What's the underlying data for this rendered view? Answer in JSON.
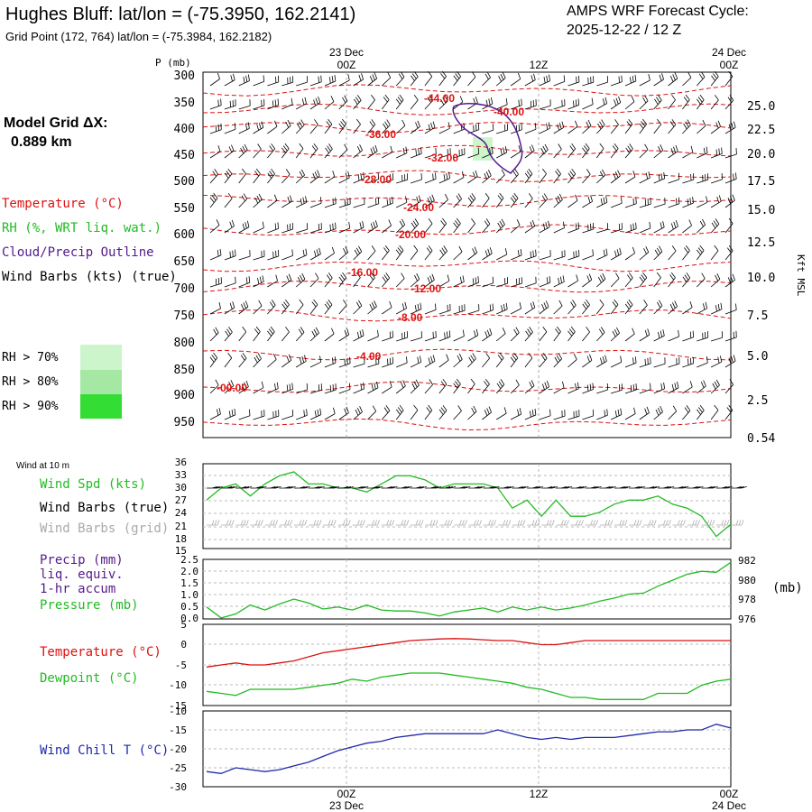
{
  "header": {
    "title": "Hughes Bluff:  lat/lon = (-75.3950, 162.2141)",
    "subtitle": "Grid Point (172, 764) lat/lon = (-75.3984, 162.2182)",
    "forecast_label": "AMPS WRF Forecast Cycle:",
    "forecast_cycle": "2025-12-22 / 12  Z"
  },
  "model": {
    "label": "Model Grid ΔX:",
    "value": "0.889 km"
  },
  "time_axis": {
    "ticks": [
      {
        "label": "00Z",
        "date": "23 Dec"
      },
      {
        "label": "12Z",
        "date": ""
      },
      {
        "label": "00Z",
        "date": "24 Dec"
      }
    ],
    "range_hours": [
      0,
      36
    ]
  },
  "colors": {
    "temperature": "#dd1111",
    "rh": "#22bb22",
    "cloud": "#551a8b",
    "wind": "#000000",
    "grid_barbs": "#aaaaaa",
    "windchill": "#1f2aa8",
    "rh70": "#ccf5cc",
    "rh80": "#a4e8a4",
    "rh90": "#33dd33"
  },
  "legend": {
    "temperature": "Temperature (°C)",
    "rh": "RH (%, WRT liq. wat.)",
    "cloud": "Cloud/Precip Outline",
    "wind": "Wind Barbs (kts) (true)",
    "rh_levels": [
      "RH > 70%",
      "RH > 80%",
      "RH > 90%"
    ]
  },
  "upper_panel": {
    "p_label": "P (mb)",
    "height_label": "Kft MSL",
    "pressure_ticks": [
      "300",
      "350",
      "400",
      "450",
      "500",
      "550",
      "600",
      "650",
      "700",
      "750",
      "800",
      "850",
      "900",
      "950"
    ],
    "height_ticks": [
      "25.0",
      "22.5",
      "20.0",
      "17.5",
      "15.0",
      "12.5",
      "10.0",
      "7.5",
      "5.0",
      "2.5",
      "0.54"
    ],
    "isotherm_labels": [
      "-44.00",
      "-40.00",
      "-36.00",
      "-32.00",
      "-28.00",
      "-24.00",
      "-20.00",
      "-16.00",
      "-12.00",
      "-8.00",
      "-4.00",
      "-00.00"
    ]
  },
  "wind_panel": {
    "title": "Wind at 10 m",
    "labels": [
      "Wind Spd (kts)",
      "Wind Barbs (true)",
      "Wind Barbs (grid)"
    ],
    "y_ticks": [
      "36",
      "33",
      "30",
      "27",
      "24",
      "21",
      "18",
      "15"
    ]
  },
  "precip_panel": {
    "labels": [
      "Precip (mm)",
      "liq. equiv.",
      "1-hr accum",
      "Pressure (mb)"
    ],
    "unit": "(mb)",
    "left_ticks": [
      "2.5",
      "2.0",
      "1.5",
      "1.0",
      "0.5",
      "0.0"
    ],
    "right_ticks": [
      "982",
      "980",
      "978",
      "976"
    ]
  },
  "temp_panel": {
    "labels": [
      "Temperature (°C)",
      "Dewpoint (°C)"
    ],
    "y_ticks": [
      "5",
      "0",
      "-5",
      "-10",
      "-15"
    ]
  },
  "chill_panel": {
    "label": "Wind Chill T (°C)",
    "y_ticks": [
      "-10",
      "-15",
      "-20",
      "-25",
      "-30"
    ]
  },
  "chart_data": [
    {
      "type": "line",
      "x": [
        0,
        1,
        2,
        3,
        4,
        5,
        6,
        7,
        8,
        9,
        10,
        11,
        12,
        13,
        14,
        15,
        16,
        17,
        18,
        19,
        20,
        21,
        22,
        23,
        24,
        25,
        26,
        27,
        28,
        29,
        30,
        31,
        32,
        33,
        34,
        35,
        36
      ],
      "series": [
        {
          "name": "Wind Spd (kts)",
          "values": [
            27,
            30,
            31,
            28,
            31,
            33,
            34,
            31,
            31,
            30,
            30,
            29,
            31,
            33,
            33,
            32,
            30,
            31,
            31,
            31,
            30,
            25,
            27,
            23,
            27,
            23,
            23,
            24,
            26,
            27,
            27,
            28,
            26,
            25,
            23,
            18,
            21
          ]
        }
      ],
      "ylim": [
        15,
        36
      ]
    },
    {
      "type": "line",
      "x": [
        0,
        1,
        2,
        3,
        4,
        5,
        6,
        7,
        8,
        9,
        10,
        11,
        12,
        13,
        14,
        15,
        16,
        17,
        18,
        19,
        20,
        21,
        22,
        23,
        24,
        25,
        26,
        27,
        28,
        29,
        30,
        31,
        32,
        33,
        34,
        35,
        36
      ],
      "series": [
        {
          "name": "Pressure (mb)",
          "values": [
            977.2,
            976.1,
            976.5,
            977.4,
            976.9,
            977.5,
            978.0,
            977.6,
            977.0,
            977.2,
            976.9,
            977.4,
            976.9,
            976.8,
            976.8,
            976.6,
            976.3,
            976.7,
            976.9,
            977.1,
            976.7,
            977.2,
            976.9,
            977.2,
            976.9,
            977.1,
            977.4,
            977.8,
            978.1,
            978.5,
            978.6,
            979.3,
            979.9,
            980.5,
            980.8,
            980.7,
            981.7
          ]
        }
      ],
      "ylim": [
        976,
        982
      ]
    },
    {
      "type": "line",
      "x": [
        0,
        1,
        2,
        3,
        4,
        5,
        6,
        7,
        8,
        9,
        10,
        11,
        12,
        13,
        14,
        15,
        16,
        17,
        18,
        19,
        20,
        21,
        22,
        23,
        24,
        25,
        26,
        27,
        28,
        29,
        30,
        31,
        32,
        33,
        34,
        35,
        36
      ],
      "series": [
        {
          "name": "Temperature (°C)",
          "values": [
            -5.5,
            -5,
            -4.5,
            -5,
            -5,
            -4.5,
            -4,
            -3,
            -2,
            -1.5,
            -1,
            -0.5,
            0,
            0.5,
            1,
            1.2,
            1.4,
            1.5,
            1.4,
            1.2,
            1,
            1,
            0.5,
            0,
            0,
            0.5,
            1,
            1,
            1,
            1,
            1,
            1,
            1,
            1,
            1,
            1,
            1
          ]
        },
        {
          "name": "Dewpoint (°C)",
          "values": [
            -11.5,
            -12,
            -12.5,
            -11,
            -11,
            -11,
            -11,
            -10.5,
            -10,
            -9.5,
            -8.5,
            -9,
            -8,
            -7.5,
            -7,
            -7,
            -7,
            -7.5,
            -8,
            -8.5,
            -9,
            -9.5,
            -10.5,
            -11,
            -12,
            -13,
            -13,
            -13.5,
            -13.5,
            -13.5,
            -13.5,
            -12,
            -12,
            -12,
            -10,
            -9,
            -8.5
          ]
        }
      ],
      "ylim": [
        -15,
        5
      ]
    },
    {
      "type": "line",
      "x": [
        0,
        1,
        2,
        3,
        4,
        5,
        6,
        7,
        8,
        9,
        10,
        11,
        12,
        13,
        14,
        15,
        16,
        17,
        18,
        19,
        20,
        21,
        22,
        23,
        24,
        25,
        26,
        27,
        28,
        29,
        30,
        31,
        32,
        33,
        34,
        35,
        36
      ],
      "series": [
        {
          "name": "Wind Chill T (°C)",
          "values": [
            -26,
            -26.5,
            -25,
            -25.5,
            -26,
            -25.5,
            -24.5,
            -23.5,
            -22,
            -20.5,
            -19.5,
            -18.5,
            -18,
            -17,
            -16.5,
            -16,
            -16,
            -16,
            -16,
            -16,
            -15,
            -16,
            -17,
            -17.5,
            -17,
            -17.5,
            -17,
            -17,
            -17,
            -16.5,
            -16,
            -15.5,
            -15.5,
            -15,
            -15,
            -13.5,
            -14.5
          ]
        }
      ],
      "ylim": [
        -30,
        -10
      ]
    }
  ]
}
